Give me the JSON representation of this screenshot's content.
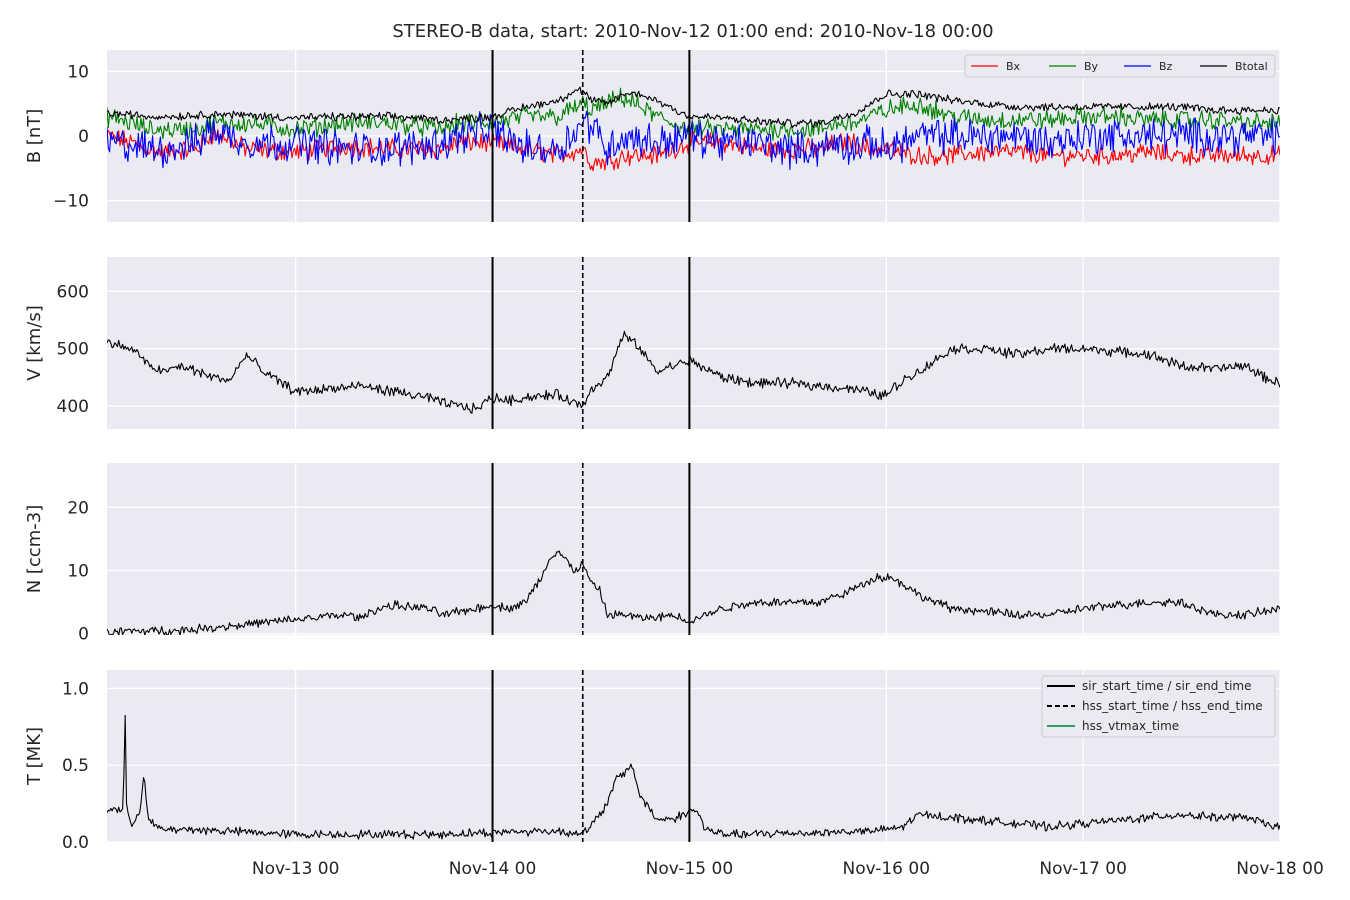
{
  "title": "STEREO-B data, start: 2010-Nov-12 01:00  end: 2010-Nov-18 00:00",
  "colors": {
    "axes_bg": "#eaeaf2",
    "grid": "#ffffff",
    "Bx": "#ff0000",
    "By": "#008000",
    "Bz": "#0000ff",
    "Btotal": "#000000",
    "event_line": "#000000",
    "hss_vtmax": "#2ca05a"
  },
  "chart_data": {
    "type": "line",
    "x_start_hours": 1,
    "x_end_hours": 144,
    "x_ticks": [
      {
        "label": "Nov-13 00",
        "hour": 24
      },
      {
        "label": "Nov-14 00",
        "hour": 48
      },
      {
        "label": "Nov-15 00",
        "hour": 72
      },
      {
        "label": "Nov-16 00",
        "hour": 96
      },
      {
        "label": "Nov-17 00",
        "hour": 120
      },
      {
        "label": "Nov-18 00",
        "hour": 144
      }
    ],
    "event_lines": [
      {
        "name": "sir_start_time",
        "hour": 48,
        "style": "solid"
      },
      {
        "name": "hss_start_time",
        "hour": 59,
        "style": "dashed"
      },
      {
        "name": "sir_end_time",
        "hour": 72,
        "style": "solid"
      }
    ],
    "panels": [
      {
        "ylabel": "B [nT]",
        "ylim": [
          -13.3,
          13.3
        ],
        "yticks": [
          {
            "v": -10,
            "label": "−10"
          },
          {
            "v": 0,
            "label": "0"
          },
          {
            "v": 10,
            "label": "10"
          }
        ],
        "legend": {
          "position": "upper right",
          "entries": [
            "Bx",
            "By",
            "Bz",
            "Btotal"
          ]
        },
        "series": [
          {
            "name": "Bx",
            "color": "#ff0000",
            "noise": 1.2,
            "x": [
              1,
              4,
              6,
              8,
              12,
              14,
              18,
              24,
              30,
              36,
              42,
              44,
              48,
              52,
              56,
              59,
              60,
              62,
              64,
              68,
              72,
              76,
              80,
              84,
              88,
              90,
              92,
              94,
              96,
              100,
              104,
              108,
              112,
              116,
              120,
              124,
              128,
              132,
              136,
              140,
              144
            ],
            "y": [
              0,
              -1,
              -2,
              -2.5,
              -2,
              0.5,
              -2,
              -2.5,
              -1.5,
              -2,
              -2,
              -1,
              -1,
              -2,
              -3,
              -2,
              -4,
              -4,
              -3,
              -3,
              -1,
              -1,
              -2,
              -2,
              -2,
              -1,
              -1,
              -2,
              -2,
              -3,
              -3,
              -2.5,
              -2.5,
              -3,
              -3,
              -3,
              -2.5,
              -3,
              -3,
              -3,
              -3
            ]
          },
          {
            "name": "By",
            "color": "#008000",
            "noise": 1.2,
            "x": [
              1,
              4,
              6,
              8,
              12,
              14,
              18,
              24,
              30,
              36,
              42,
              44,
              48,
              52,
              56,
              59,
              60,
              62,
              64,
              68,
              72,
              76,
              80,
              84,
              88,
              90,
              92,
              94,
              96,
              100,
              104,
              108,
              112,
              116,
              120,
              124,
              128,
              132,
              136,
              140,
              144
            ],
            "y": [
              3,
              2,
              1,
              1,
              1,
              2,
              2,
              1,
              2,
              2,
              1,
              2,
              2,
              3,
              3,
              5,
              4,
              5,
              6,
              3,
              1,
              1,
              1,
              1,
              1,
              2,
              2,
              3,
              4,
              5,
              3,
              2.5,
              2.5,
              2.5,
              3,
              3,
              2.5,
              2.5,
              2.5,
              2,
              2
            ]
          },
          {
            "name": "Bz",
            "color": "#0000ff",
            "noise": 2.2,
            "x": [
              1,
              4,
              6,
              8,
              12,
              14,
              18,
              24,
              30,
              36,
              42,
              44,
              48,
              52,
              56,
              59,
              60,
              62,
              64,
              68,
              72,
              76,
              80,
              84,
              88,
              90,
              92,
              94,
              96,
              100,
              104,
              108,
              112,
              116,
              120,
              124,
              128,
              132,
              136,
              140,
              144
            ],
            "y": [
              -1,
              -1.5,
              -2,
              -2,
              -1,
              1,
              -1,
              -1,
              -2,
              -2,
              -1,
              0,
              1,
              -2,
              -2,
              2,
              2,
              -2,
              0,
              -1,
              0,
              -1,
              -1,
              -2,
              -2,
              -1,
              -2,
              -1,
              -2,
              0,
              0,
              0,
              0,
              -1,
              0,
              0,
              0,
              0,
              0,
              0,
              0
            ]
          },
          {
            "name": "Btotal",
            "color": "#000000",
            "noise": 0.5,
            "x": [
              1,
              4,
              6,
              8,
              12,
              14,
              18,
              24,
              30,
              36,
              42,
              44,
              48,
              52,
              56,
              58,
              59,
              60,
              62,
              64,
              66,
              68,
              72,
              76,
              80,
              84,
              88,
              90,
              92,
              94,
              96,
              100,
              104,
              108,
              112,
              116,
              120,
              124,
              128,
              132,
              136,
              140,
              144
            ],
            "y": [
              3.5,
              3.3,
              3,
              3,
              3.2,
              3.4,
              3.2,
              2.8,
              3,
              3,
              2.5,
              2.6,
              3,
              4.5,
              5.5,
              7,
              7,
              5.5,
              5,
              6.5,
              6.5,
              5.5,
              3,
              2.8,
              2.3,
              2,
              2,
              2.8,
              3.5,
              5,
              6.5,
              6.5,
              5.5,
              5,
              4.5,
              4.5,
              4.5,
              4.5,
              4.5,
              4.5,
              4,
              4,
              4
            ]
          }
        ]
      },
      {
        "ylabel": "V [km/s]",
        "ylim": [
          360,
          660
        ],
        "yticks": [
          {
            "v": 400,
            "label": "400"
          },
          {
            "v": 500,
            "label": "500"
          },
          {
            "v": 600,
            "label": "600"
          }
        ],
        "series": [
          {
            "name": "V",
            "color": "#000000",
            "noise": 7,
            "x": [
              1,
              3,
              5,
              6,
              8,
              10,
              12,
              14,
              16,
              18,
              20,
              24,
              28,
              32,
              36,
              40,
              42,
              44,
              46,
              48,
              50,
              52,
              56,
              58,
              59,
              60,
              62,
              64,
              66,
              68,
              70,
              72,
              74,
              76,
              80,
              84,
              88,
              92,
              95,
              96,
              98,
              100,
              104,
              108,
              112,
              116,
              120,
              124,
              128,
              132,
              136,
              140,
              142,
              144
            ],
            "y": [
              510,
              505,
              490,
              470,
              460,
              470,
              460,
              450,
              445,
              490,
              460,
              425,
              430,
              435,
              425,
              415,
              405,
              400,
              395,
              415,
              410,
              415,
              420,
              405,
              400,
              430,
              450,
              525,
              500,
              460,
              470,
              480,
              465,
              450,
              440,
              440,
              435,
              430,
              420,
              420,
              445,
              460,
              500,
              500,
              490,
              500,
              500,
              495,
              490,
              470,
              465,
              470,
              450,
              440
            ]
          }
        ]
      },
      {
        "ylabel": "N [ccm-3]",
        "ylim": [
          -0.2,
          27
        ],
        "yticks": [
          {
            "v": 0,
            "label": "0"
          },
          {
            "v": 10,
            "label": "10"
          },
          {
            "v": 20,
            "label": "20"
          }
        ],
        "series": [
          {
            "name": "N",
            "color": "#000000",
            "noise": 0.55,
            "x": [
              1,
              4,
              8,
              10,
              14,
              18,
              22,
              26,
              30,
              32,
              34,
              36,
              40,
              42,
              44,
              48,
              50,
              52,
              54,
              55,
              56,
              58,
              59,
              60,
              61,
              62,
              64,
              66,
              68,
              70,
              72,
              74,
              76,
              80,
              84,
              88,
              90,
              92,
              94,
              95,
              96,
              98,
              100,
              102,
              104,
              108,
              112,
              116,
              120,
              124,
              128,
              132,
              134,
              136,
              140,
              144
            ],
            "y": [
              0.2,
              0.4,
              0.5,
              0.5,
              1,
              1.5,
              2,
              2.5,
              3,
              2.5,
              4,
              4.5,
              4,
              3,
              3.5,
              4.5,
              4,
              5,
              9,
              12,
              13,
              10,
              11,
              8,
              7,
              3,
              3,
              2.5,
              2.5,
              3,
              2,
              3,
              4,
              5,
              5,
              5,
              6,
              7,
              8.5,
              9,
              9,
              8,
              6,
              5,
              4,
              3.5,
              3,
              3,
              4,
              4.5,
              5,
              5,
              4,
              3,
              3,
              4
            ]
          }
        ]
      },
      {
        "ylabel": "T [MK]",
        "ylim": [
          0,
          1.12
        ],
        "yticks": [
          {
            "v": 0,
            "label": "0.0"
          },
          {
            "v": 0.5,
            "label": "0.5"
          },
          {
            "v": 1,
            "label": "1.0"
          }
        ],
        "legend": {
          "position": "upper right",
          "entries": [
            "sir_start_time / sir_end_time",
            "hss_start_time / hss_end_time",
            "hss_vtmax_time"
          ]
        },
        "series": [
          {
            "name": "T",
            "color": "#000000",
            "noise": 0.022,
            "x": [
              1,
              2,
              3,
              3.2,
              3.4,
              3.6,
              4,
              5,
              5.5,
              6,
              6.5,
              7,
              8,
              12,
              16,
              20,
              24,
              30,
              36,
              42,
              46,
              48,
              52,
              56,
              58,
              59,
              60,
              62,
              63,
              64,
              65,
              66,
              68,
              70,
              72,
              73,
              74,
              76,
              80,
              84,
              88,
              92,
              94,
              96,
              98,
              100,
              104,
              108,
              112,
              116,
              120,
              124,
              128,
              132,
              136,
              140,
              142,
              144
            ],
            "y": [
              0.2,
              0.22,
              0.2,
              0.9,
              0.2,
              0.15,
              0.12,
              0.2,
              0.45,
              0.15,
              0.12,
              0.1,
              0.08,
              0.08,
              0.07,
              0.06,
              0.05,
              0.05,
              0.05,
              0.05,
              0.06,
              0.06,
              0.07,
              0.07,
              0.06,
              0.06,
              0.1,
              0.25,
              0.4,
              0.45,
              0.5,
              0.3,
              0.15,
              0.15,
              0.2,
              0.2,
              0.08,
              0.05,
              0.05,
              0.06,
              0.06,
              0.07,
              0.07,
              0.08,
              0.1,
              0.18,
              0.16,
              0.14,
              0.12,
              0.1,
              0.12,
              0.14,
              0.16,
              0.18,
              0.16,
              0.16,
              0.12,
              0.1
            ]
          }
        ]
      }
    ]
  }
}
